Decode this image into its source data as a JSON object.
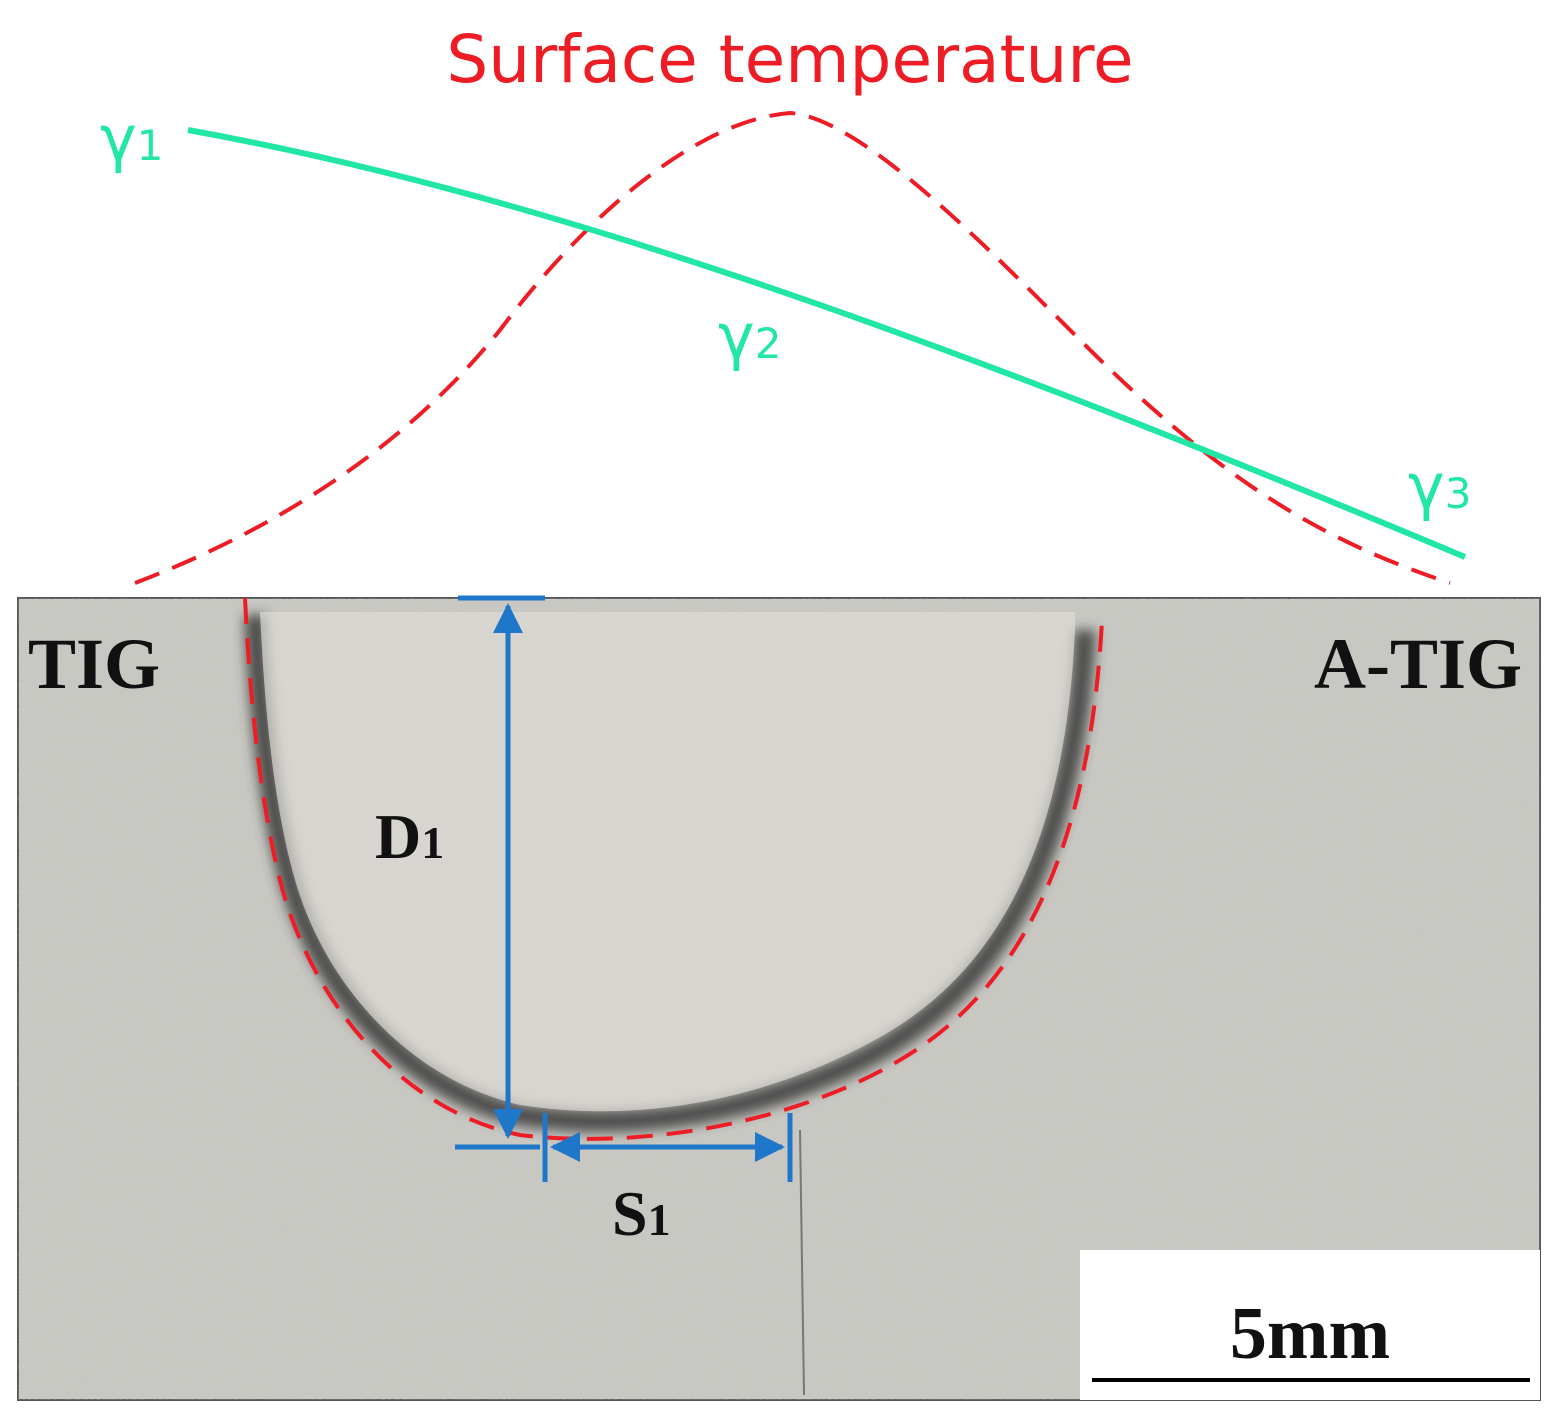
{
  "title": "Surface temperature",
  "gamma_labels": [
    {
      "base": "γ",
      "sub": "1"
    },
    {
      "base": "γ",
      "sub": "2"
    },
    {
      "base": "γ",
      "sub": "3"
    }
  ],
  "left_label": "TIG",
  "right_label": "A-TIG",
  "depth_label": {
    "base": "D",
    "sub": "1"
  },
  "shift_label": {
    "base": "S",
    "sub": "1"
  },
  "scale_bar": "5mm"
}
